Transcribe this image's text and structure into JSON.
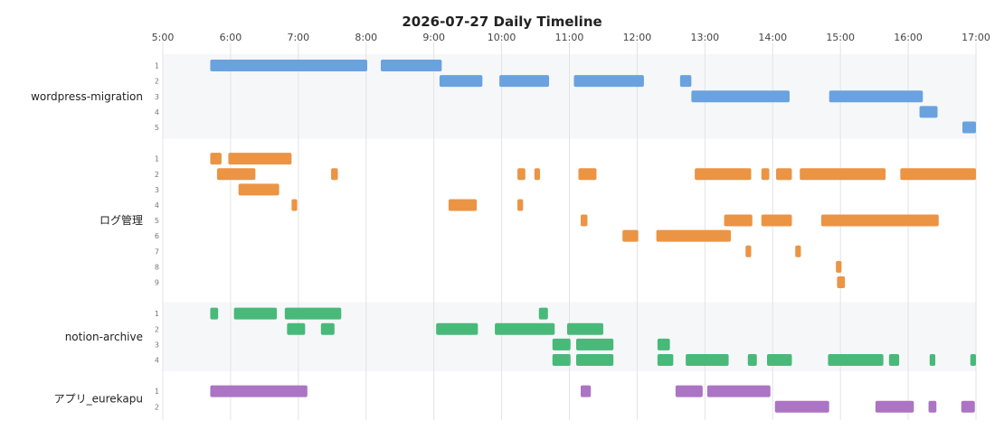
{
  "chart_data": {
    "type": "bar",
    "subtype": "timeline",
    "title": "2026-07-27 Daily Timeline",
    "x_ticks": [
      "5:00",
      "6:00",
      "7:00",
      "8:00",
      "9:00",
      "10:00",
      "11:00",
      "12:00",
      "13:00",
      "14:00",
      "15:00",
      "16:00",
      "17:00"
    ],
    "xlim": [
      "5:00",
      "17:00"
    ],
    "grid": true,
    "groups": [
      {
        "name": "wordpress-migration",
        "color": "#6aa2e0",
        "lanes": [
          {
            "label": "1",
            "bars": [
              [
                "5:42",
                "8:01"
              ],
              [
                "8:13",
                "9:07"
              ]
            ]
          },
          {
            "label": "2",
            "bars": [
              [
                "9:05",
                "9:43"
              ],
              [
                "9:58",
                "10:42"
              ],
              [
                "11:04",
                "12:06"
              ],
              [
                "12:38",
                "12:48"
              ]
            ]
          },
          {
            "label": "3",
            "bars": [
              [
                "12:48",
                "14:15"
              ],
              [
                "14:50",
                "16:13"
              ]
            ]
          },
          {
            "label": "4",
            "bars": [
              [
                "16:10",
                "16:26"
              ]
            ]
          },
          {
            "label": "5",
            "bars": [
              [
                "16:48",
                "17:00"
              ]
            ]
          }
        ]
      },
      {
        "name": "ログ管理",
        "color": "#eb9444",
        "lanes": [
          {
            "label": "1",
            "bars": [
              [
                "5:42",
                "5:52"
              ],
              [
                "5:58",
                "6:54"
              ]
            ]
          },
          {
            "label": "2",
            "bars": [
              [
                "5:48",
                "6:22"
              ],
              [
                "7:29",
                "7:35"
              ],
              [
                "10:14",
                "10:21"
              ],
              [
                "10:29",
                "10:34"
              ],
              [
                "11:08",
                "11:24"
              ],
              [
                "12:51",
                "13:41"
              ],
              [
                "13:50",
                "13:57"
              ],
              [
                "14:03",
                "14:17"
              ],
              [
                "14:24",
                "15:40"
              ],
              [
                "15:53",
                "17:00"
              ]
            ]
          },
          {
            "label": "3",
            "bars": [
              [
                "6:07",
                "6:43"
              ]
            ]
          },
          {
            "label": "4",
            "bars": [
              [
                "6:54",
                "6:59"
              ],
              [
                "9:13",
                "9:38"
              ],
              [
                "10:14",
                "10:19"
              ]
            ]
          },
          {
            "label": "5",
            "bars": [
              [
                "11:10",
                "11:16"
              ],
              [
                "13:17",
                "13:42"
              ],
              [
                "13:50",
                "14:17"
              ],
              [
                "14:43",
                "16:27"
              ]
            ]
          },
          {
            "label": "6",
            "bars": [
              [
                "11:47",
                "12:01"
              ],
              [
                "12:17",
                "13:23"
              ]
            ]
          },
          {
            "label": "7",
            "bars": [
              [
                "13:36",
                "13:41"
              ],
              [
                "14:20",
                "14:25"
              ]
            ]
          },
          {
            "label": "8",
            "bars": [
              [
                "14:56",
                "15:01"
              ]
            ]
          },
          {
            "label": "9",
            "bars": [
              [
                "14:57",
                "15:04"
              ]
            ]
          }
        ]
      },
      {
        "name": "notion-archive",
        "color": "#49b97a",
        "lanes": [
          {
            "label": "1",
            "bars": [
              [
                "5:42",
                "5:49"
              ],
              [
                "6:03",
                "6:41"
              ],
              [
                "6:48",
                "7:38"
              ],
              [
                "10:33",
                "10:41"
              ]
            ]
          },
          {
            "label": "2",
            "bars": [
              [
                "6:50",
                "7:06"
              ],
              [
                "7:20",
                "7:32"
              ],
              [
                "9:02",
                "9:39"
              ],
              [
                "9:54",
                "10:47"
              ],
              [
                "10:58",
                "11:30"
              ]
            ]
          },
          {
            "label": "3",
            "bars": [
              [
                "10:45",
                "11:01"
              ],
              [
                "11:06",
                "11:39"
              ],
              [
                "12:18",
                "12:29"
              ]
            ]
          },
          {
            "label": "4",
            "bars": [
              [
                "10:45",
                "11:01"
              ],
              [
                "11:06",
                "11:39"
              ],
              [
                "12:18",
                "12:32"
              ],
              [
                "12:43",
                "13:21"
              ],
              [
                "13:38",
                "13:46"
              ],
              [
                "13:55",
                "14:17"
              ],
              [
                "14:49",
                "15:38"
              ],
              [
                "15:43",
                "15:52"
              ],
              [
                "16:19",
                "16:24"
              ],
              [
                "16:55",
                "17:00"
              ]
            ]
          }
        ]
      },
      {
        "name": "アプリ_eurekapu",
        "color": "#ac74c4",
        "lanes": [
          {
            "label": "1",
            "bars": [
              [
                "5:42",
                "7:08"
              ],
              [
                "11:10",
                "11:19"
              ],
              [
                "12:34",
                "12:58"
              ],
              [
                "13:02",
                "13:58"
              ]
            ]
          },
          {
            "label": "2",
            "bars": [
              [
                "14:02",
                "14:50"
              ],
              [
                "15:31",
                "16:05"
              ],
              [
                "16:18",
                "16:25"
              ],
              [
                "16:47",
                "16:59"
              ]
            ]
          }
        ]
      }
    ]
  }
}
